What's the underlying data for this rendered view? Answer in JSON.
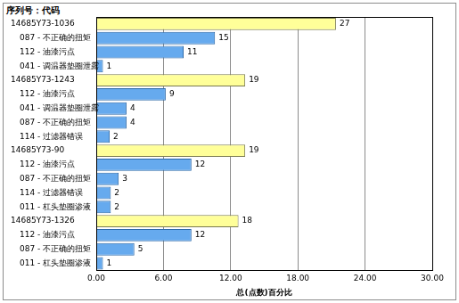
{
  "chart_data": {
    "type": "bar",
    "orientation": "horizontal",
    "title": "序列号：代码",
    "x_label": "总(点数)百分比",
    "categories": [
      "14685Y73-1036",
      "087 - 不正确的扭矩",
      "112 - 油漆污点",
      "041 - 调温器垫圈泄露",
      "14685Y73-1243",
      "112 - 油漆污点",
      "041 - 调温器垫圈泄露",
      "087 - 不正确的扭矩",
      "114 - 过滤器错误",
      "14685Y73-90",
      "112 - 油漆污点",
      "087 - 不正确的扭矩",
      "114 - 过滤器错误",
      "011 - 杠头垫圈渗液",
      "14685Y73-1326",
      "112 - 油漆污点",
      "087 - 不正确的扭矩",
      "011 - 杠头垫圈渗液"
    ],
    "values": [
      21.4,
      10.6,
      7.8,
      0.6,
      13.3,
      6.2,
      2.7,
      2.7,
      1.2,
      13.3,
      8.5,
      2.0,
      1.3,
      1.3,
      12.7,
      8.5,
      3.4,
      0.6
    ],
    "counts": [
      27,
      15,
      11,
      1,
      19,
      9,
      4,
      4,
      2,
      19,
      12,
      3,
      2,
      2,
      18,
      12,
      5,
      1
    ],
    "colors": [
      "#ffff99",
      "#66aaee",
      "#66aaee",
      "#66aaee",
      "#ffff99",
      "#66aaee",
      "#66aaee",
      "#66aaee",
      "#66aaee",
      "#ffff99",
      "#66aaee",
      "#66aaee",
      "#66aaee",
      "#66aaee",
      "#ffff99",
      "#66aaee",
      "#66aaee",
      "#66aaee"
    ],
    "xlim": [
      0,
      30
    ],
    "xticks": [
      {
        "value": 0,
        "label": "0.00"
      },
      {
        "value": 6,
        "label": "6.00"
      },
      {
        "value": 12,
        "label": "12.00"
      },
      {
        "value": 18,
        "label": "18.00"
      },
      {
        "value": 24,
        "label": "24.00"
      },
      {
        "value": 30,
        "label": "30.00"
      }
    ],
    "grid": true
  }
}
